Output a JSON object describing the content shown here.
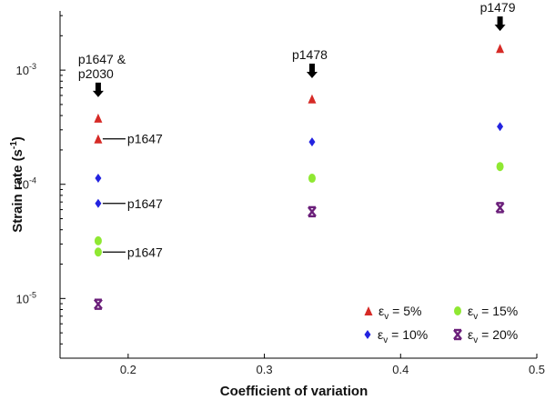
{
  "chart_data": {
    "type": "scatter",
    "title": "",
    "xlabel": "Coefficient of variation",
    "ylabel_base": "Strain rate (s",
    "ylabel_exp": "-1",
    "ylabel_close": ")",
    "x_scale": "linear",
    "y_scale": "log",
    "xlim": [
      0.15,
      0.5
    ],
    "ylim": [
      3e-06,
      0.0033
    ],
    "x_ticks": [
      0.2,
      0.3,
      0.4,
      0.5
    ],
    "x_tick_labels": [
      "0.2",
      "0.3",
      "0.4",
      "0.5"
    ],
    "y_ticks": [
      1e-05,
      0.0001,
      0.001
    ],
    "y_tick_labels": [
      {
        "base": "10",
        "exp": "-5"
      },
      {
        "base": "10",
        "exp": "-4"
      },
      {
        "base": "10",
        "exp": "-3"
      }
    ],
    "grid": false,
    "legend_placement": "bottom-right",
    "series": [
      {
        "key": "s5",
        "label_pre": "ε",
        "label_sub": "v",
        "label_post": " = 5%",
        "color": "#d62a26",
        "marker": "triangle",
        "points": [
          {
            "x": 0.178,
            "y": 0.00038
          },
          {
            "x": 0.178,
            "y": 0.00025
          },
          {
            "x": 0.335,
            "y": 0.00056
          },
          {
            "x": 0.473,
            "y": 0.00155
          }
        ]
      },
      {
        "key": "s10",
        "label_pre": "ε",
        "label_sub": "v",
        "label_post": " = 10%",
        "color": "#2323e0",
        "marker": "diamond",
        "points": [
          {
            "x": 0.178,
            "y": 0.000113
          },
          {
            "x": 0.178,
            "y": 6.8e-05
          },
          {
            "x": 0.335,
            "y": 0.000235
          },
          {
            "x": 0.473,
            "y": 0.00032
          }
        ]
      },
      {
        "key": "s15",
        "label_pre": "ε",
        "label_sub": "v",
        "label_post": " = 15%",
        "color": "#8fe832",
        "marker": "circle",
        "points": [
          {
            "x": 0.178,
            "y": 3.2e-05
          },
          {
            "x": 0.178,
            "y": 2.55e-05
          },
          {
            "x": 0.335,
            "y": 0.000113
          },
          {
            "x": 0.473,
            "y": 0.000143
          }
        ]
      },
      {
        "key": "s20",
        "label_pre": "ε",
        "label_sub": "v",
        "label_post": " = 20%",
        "color": "#6b1f7a",
        "marker": "star",
        "points": [
          {
            "x": 0.178,
            "y": 8.9e-06
          },
          {
            "x": 0.335,
            "y": 5.75e-05
          },
          {
            "x": 0.473,
            "y": 6.25e-05
          }
        ]
      }
    ],
    "arrow_annotations": [
      {
        "lines": [
          "p1647 &",
          "p2030"
        ],
        "x": 0.178,
        "y": 0.00058
      },
      {
        "lines": [
          "p1478"
        ],
        "x": 0.335,
        "y": 0.00085
      },
      {
        "lines": [
          "p1479"
        ],
        "x": 0.473,
        "y": 0.0022
      }
    ],
    "line_annotations": [
      {
        "text": "p1647",
        "x": 0.178,
        "y": 0.00025
      },
      {
        "text": "p1647",
        "x": 0.178,
        "y": 6.8e-05
      },
      {
        "text": "p1647",
        "x": 0.178,
        "y": 2.55e-05
      }
    ]
  }
}
